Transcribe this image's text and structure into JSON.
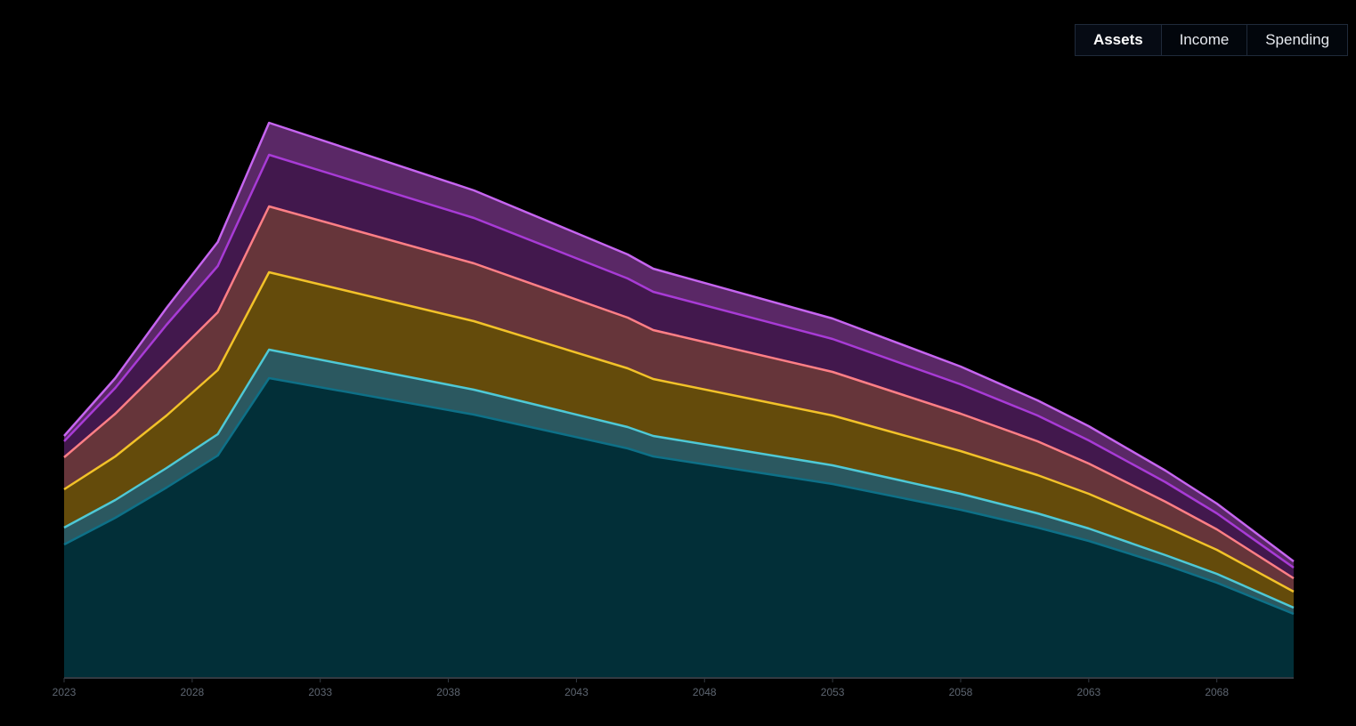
{
  "tabs": [
    {
      "label": "Assets",
      "active": true
    },
    {
      "label": "Income",
      "active": false
    },
    {
      "label": "Spending",
      "active": false
    }
  ],
  "chart_data": {
    "type": "area",
    "stacked": true,
    "xlim": [
      2023,
      2071
    ],
    "x_ticks": [
      "2023",
      "2028",
      "2033",
      "2038",
      "2043",
      "2048",
      "2053",
      "2058",
      "2063",
      "2068"
    ],
    "x": [
      2023,
      2025,
      2027,
      2029,
      2031,
      2039,
      2045,
      2046,
      2053,
      2058,
      2061,
      2063,
      2066,
      2068,
      2071
    ],
    "grid": false,
    "legend": "none",
    "series": [
      {
        "line_color": "#0e7087",
        "fill_color": "#022f38",
        "values": [
          1.49,
          1.79,
          2.13,
          2.49,
          3.36,
          2.95,
          2.57,
          2.48,
          2.17,
          1.88,
          1.68,
          1.53,
          1.26,
          1.06,
          0.71
        ]
      },
      {
        "line_color": "#4fc9d6",
        "fill_color": "#2b5860",
        "values": [
          0.19,
          0.2,
          0.22,
          0.24,
          0.32,
          0.28,
          0.24,
          0.23,
          0.21,
          0.18,
          0.16,
          0.14,
          0.11,
          0.1,
          0.07
        ]
      },
      {
        "line_color": "#f2c229",
        "fill_color": "#644b0b",
        "values": [
          0.43,
          0.49,
          0.59,
          0.72,
          0.87,
          0.77,
          0.66,
          0.64,
          0.56,
          0.48,
          0.43,
          0.39,
          0.32,
          0.27,
          0.18
        ]
      },
      {
        "line_color": "#ff7f86",
        "fill_color": "#66353a",
        "values": [
          0.36,
          0.48,
          0.59,
          0.65,
          0.74,
          0.65,
          0.57,
          0.55,
          0.49,
          0.42,
          0.38,
          0.34,
          0.28,
          0.23,
          0.15
        ]
      },
      {
        "line_color": "#a83bd6",
        "fill_color": "#42184d",
        "values": [
          0.18,
          0.29,
          0.43,
          0.52,
          0.58,
          0.51,
          0.44,
          0.43,
          0.37,
          0.33,
          0.29,
          0.26,
          0.22,
          0.18,
          0.12
        ]
      },
      {
        "line_color": "#c665f0",
        "fill_color": "#5a2866",
        "values": [
          0.06,
          0.11,
          0.19,
          0.27,
          0.36,
          0.31,
          0.27,
          0.26,
          0.23,
          0.2,
          0.17,
          0.16,
          0.13,
          0.11,
          0.07
        ]
      }
    ]
  }
}
